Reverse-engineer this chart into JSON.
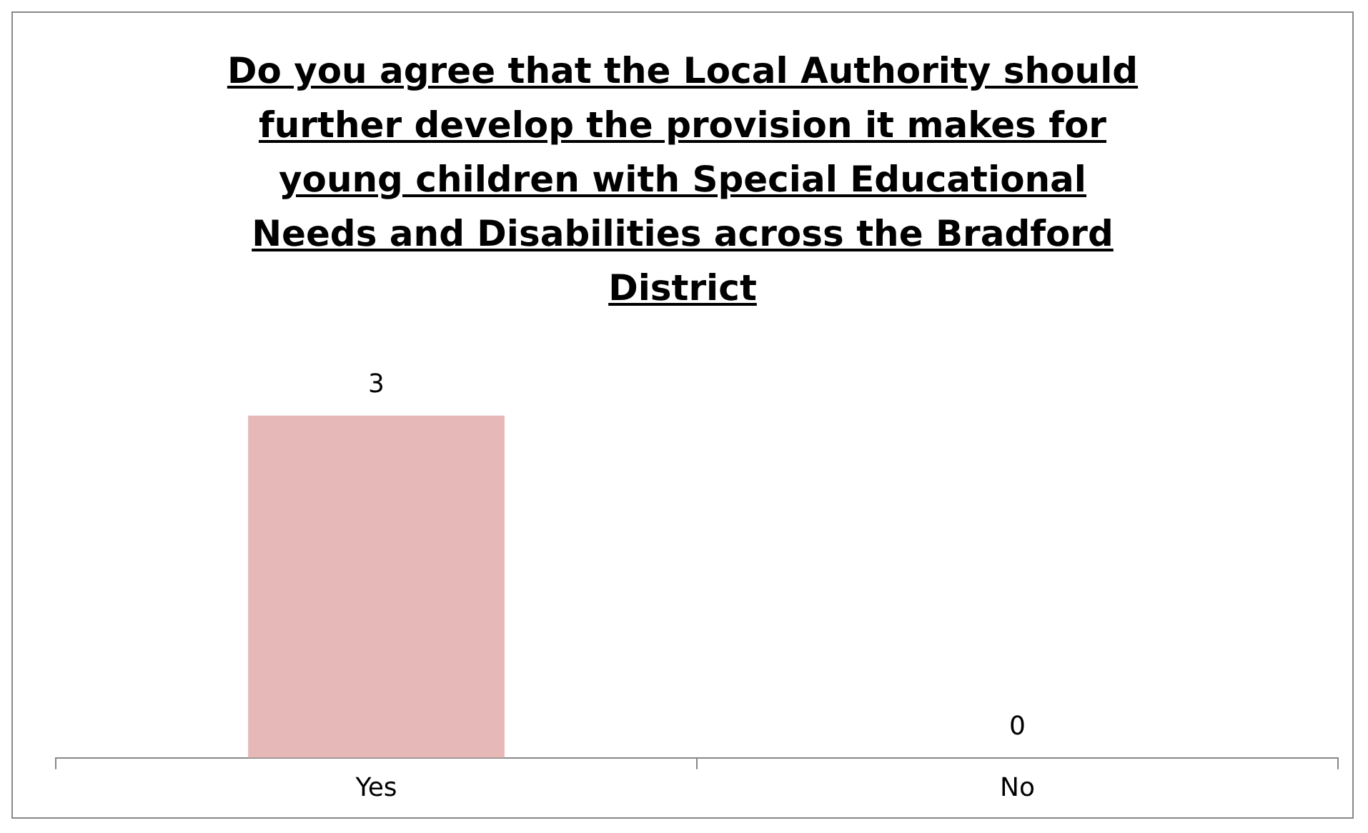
{
  "chart_data": {
    "type": "bar",
    "title": "Do you agree that the Local Authority should further develop the provision it makes for young children with Special Educational Needs and Disabilities across the Bradford District",
    "categories": [
      "Yes",
      "No"
    ],
    "values": [
      3,
      0
    ],
    "color": "#e6b8b7",
    "tick_labels": "x",
    "data_labels": true,
    "grid": false,
    "legend": false
  }
}
